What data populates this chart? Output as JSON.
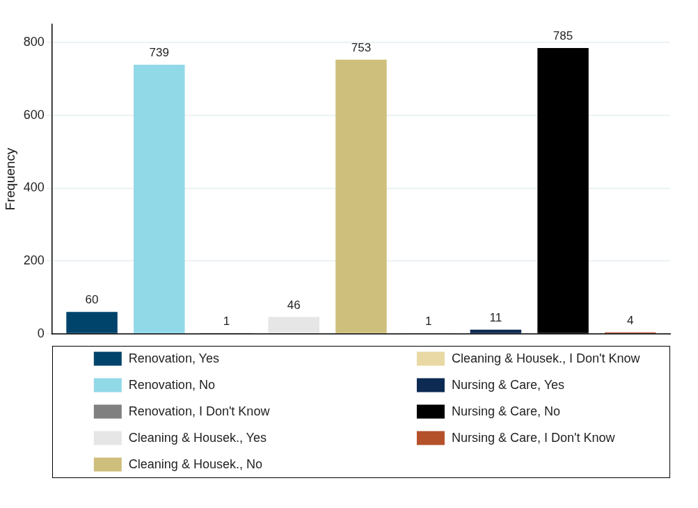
{
  "chart_data": {
    "type": "bar",
    "ylabel": "Frequency",
    "categories": [
      null
    ],
    "series": [
      {
        "name": "Renovation, Yes",
        "color": "#00436b",
        "values": [
          60
        ]
      },
      {
        "name": "Renovation, No",
        "color": "#92d9e8",
        "values": [
          739
        ]
      },
      {
        "name": "Renovation, I Don't Know",
        "color": "#808080",
        "values": [
          1
        ]
      },
      {
        "name": "Cleaning & Housek., Yes",
        "color": "#e6e6e6",
        "values": [
          46
        ]
      },
      {
        "name": "Cleaning & Housek., No",
        "color": "#cfbf7c",
        "values": [
          753
        ]
      },
      {
        "name": "Cleaning & Housek., I Don't Know",
        "color": "#e8d9a4",
        "values": [
          1
        ]
      },
      {
        "name": "Nursing & Care, Yes",
        "color": "#0c2a52",
        "values": [
          11
        ]
      },
      {
        "name": "Nursing & Care, No",
        "color": "#000000",
        "values": [
          785
        ]
      },
      {
        "name": "Nursing & Care, I Don't Know",
        "color": "#b5512a",
        "values": [
          4
        ]
      }
    ],
    "ylim": [
      0,
      850
    ],
    "yticks": [
      0,
      200,
      400,
      600,
      800
    ],
    "grid": "y",
    "legend": "bottom",
    "data_labels": true
  }
}
